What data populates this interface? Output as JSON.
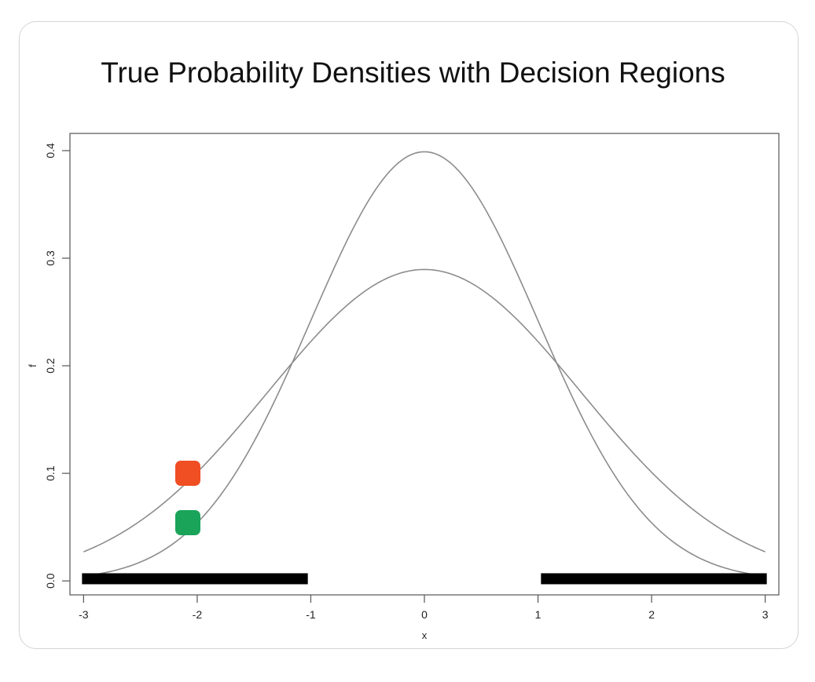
{
  "chart_data": {
    "type": "line",
    "title": "True Probability Densities with Decision Regions",
    "xlabel": "x",
    "ylabel": "f",
    "xlim": [
      -3.12,
      3.12
    ],
    "ylim": [
      -0.013,
      0.416
    ],
    "x_ticks": [
      -3,
      -2,
      -1,
      0,
      1,
      2,
      3
    ],
    "x_tick_labels": [
      "-3",
      "-2",
      "-1",
      "0",
      "1",
      "2",
      "3"
    ],
    "y_ticks": [
      0.0,
      0.1,
      0.2,
      0.3,
      0.4
    ],
    "y_tick_labels": [
      "0.0",
      "0.1",
      "0.2",
      "0.3",
      "0.4"
    ],
    "grid": false,
    "series": [
      {
        "distribution": "normal",
        "mean": 0,
        "sd": 1,
        "domain": [
          -3,
          3
        ],
        "color": "#8c8c8c"
      },
      {
        "distribution": "normal",
        "mean": 0,
        "sd": 1.378,
        "domain": [
          -3,
          3
        ],
        "color": "#8c8c8c"
      }
    ],
    "decision_regions": [
      {
        "x_start": -3,
        "x_end": -1.04,
        "y": 0.002
      },
      {
        "x_start": 1.04,
        "x_end": 3,
        "y": 0.002
      }
    ],
    "markers": [
      {
        "x": -2.08,
        "y": 0.1,
        "color": "#f04e23"
      },
      {
        "x": -2.08,
        "y": 0.054,
        "color": "#1aa45a"
      }
    ]
  }
}
